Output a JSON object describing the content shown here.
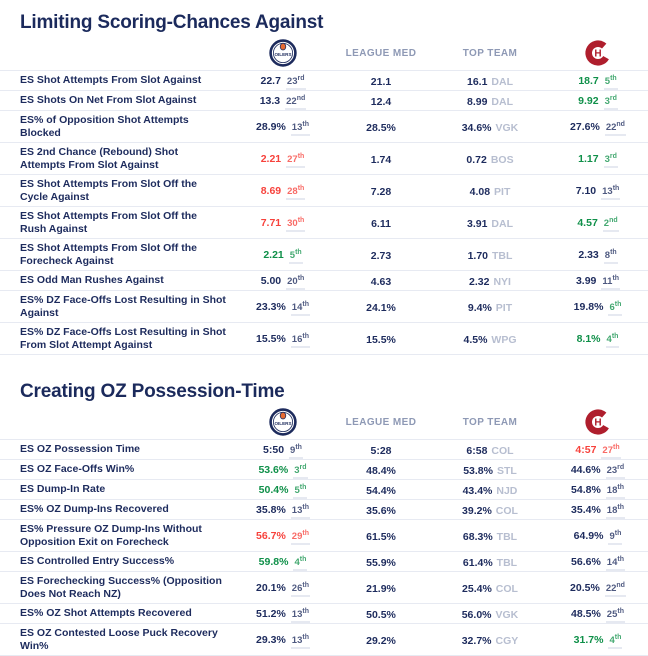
{
  "header_labels": {
    "league_med": "LEAGUE MED",
    "top_team": "TOP TEAM"
  },
  "colors": {
    "navy": "#1d2b5d",
    "green": "#0f9049",
    "red": "#f7423c",
    "header_muted": "#8e99b5",
    "team_abbr_gray": "#b7bed0",
    "row_border": "#e7eaf2",
    "oilers_orange": "#e66a32",
    "canadiens_red": "#af1e2d"
  },
  "chart_data": [
    {
      "type": "table",
      "title": "Limiting Scoring-Chances Against",
      "left_logo": "edmonton-oilers-logo",
      "right_logo": "montreal-canadiens-logo",
      "columns": [
        "Metric",
        "EDM value + league rank",
        "LEAGUE MED",
        "TOP TEAM",
        "MTL value + league rank"
      ],
      "rows": [
        {
          "label": "ES Shot Attempts From Slot Against",
          "team_left": {
            "value": "22.7",
            "rank": "23",
            "ord": "rd",
            "color": "navy"
          },
          "league_med": "21.1",
          "top_team": {
            "value": "16.1",
            "team": "DAL"
          },
          "team_right": {
            "value": "18.7",
            "rank": "5",
            "ord": "th",
            "color": "green"
          }
        },
        {
          "label": "ES Shots On Net From Slot Against",
          "team_left": {
            "value": "13.3",
            "rank": "22",
            "ord": "nd",
            "color": "navy"
          },
          "league_med": "12.4",
          "top_team": {
            "value": "8.99",
            "team": "DAL"
          },
          "team_right": {
            "value": "9.92",
            "rank": "3",
            "ord": "rd",
            "color": "green"
          }
        },
        {
          "label": "ES% of Opposition Shot Attempts Blocked",
          "team_left": {
            "value": "28.9%",
            "rank": "13",
            "ord": "th",
            "color": "navy"
          },
          "league_med": "28.5%",
          "top_team": {
            "value": "34.6%",
            "team": "VGK"
          },
          "team_right": {
            "value": "27.6%",
            "rank": "22",
            "ord": "nd",
            "color": "navy"
          }
        },
        {
          "label": "ES 2nd Chance (Rebound) Shot Attempts From Slot Against",
          "team_left": {
            "value": "2.21",
            "rank": "27",
            "ord": "th",
            "color": "red"
          },
          "league_med": "1.74",
          "top_team": {
            "value": "0.72",
            "team": "BOS"
          },
          "team_right": {
            "value": "1.17",
            "rank": "3",
            "ord": "rd",
            "color": "green"
          }
        },
        {
          "label": "ES Shot Attempts From Slot Off the Cycle Against",
          "team_left": {
            "value": "8.69",
            "rank": "28",
            "ord": "th",
            "color": "red"
          },
          "league_med": "7.28",
          "top_team": {
            "value": "4.08",
            "team": "PIT"
          },
          "team_right": {
            "value": "7.10",
            "rank": "13",
            "ord": "th",
            "color": "navy"
          }
        },
        {
          "label": "ES Shot Attempts From Slot Off the Rush Against",
          "team_left": {
            "value": "7.71",
            "rank": "30",
            "ord": "th",
            "color": "red"
          },
          "league_med": "6.11",
          "top_team": {
            "value": "3.91",
            "team": "DAL"
          },
          "team_right": {
            "value": "4.57",
            "rank": "2",
            "ord": "nd",
            "color": "green"
          }
        },
        {
          "label": "ES Shot Attempts From Slot Off the Forecheck Against",
          "team_left": {
            "value": "2.21",
            "rank": "5",
            "ord": "th",
            "color": "green"
          },
          "league_med": "2.73",
          "top_team": {
            "value": "1.70",
            "team": "TBL"
          },
          "team_right": {
            "value": "2.33",
            "rank": "8",
            "ord": "th",
            "color": "navy"
          }
        },
        {
          "label": "ES Odd Man Rushes Against",
          "team_left": {
            "value": "5.00",
            "rank": "20",
            "ord": "th",
            "color": "navy"
          },
          "league_med": "4.63",
          "top_team": {
            "value": "2.32",
            "team": "NYI"
          },
          "team_right": {
            "value": "3.99",
            "rank": "11",
            "ord": "th",
            "color": "navy"
          }
        },
        {
          "label": "ES% DZ Face-Offs Lost Resulting in Shot Against",
          "team_left": {
            "value": "23.3%",
            "rank": "14",
            "ord": "th",
            "color": "navy"
          },
          "league_med": "24.1%",
          "top_team": {
            "value": "9.4%",
            "team": "PIT"
          },
          "team_right": {
            "value": "19.8%",
            "rank": "6",
            "ord": "th",
            "color": "navy",
            "rank_color": "green"
          }
        },
        {
          "label": "ES% DZ Face-Offs Lost Resulting in Shot From Slot Attempt Against",
          "team_left": {
            "value": "15.5%",
            "rank": "16",
            "ord": "th",
            "color": "navy"
          },
          "league_med": "15.5%",
          "top_team": {
            "value": "4.5%",
            "team": "WPG"
          },
          "team_right": {
            "value": "8.1%",
            "rank": "4",
            "ord": "th",
            "color": "green"
          }
        }
      ]
    },
    {
      "type": "table",
      "title": "Creating OZ Possession-Time",
      "left_logo": "edmonton-oilers-logo",
      "right_logo": "montreal-canadiens-logo",
      "columns": [
        "Metric",
        "EDM value + league rank",
        "LEAGUE MED",
        "TOP TEAM",
        "MTL value + league rank"
      ],
      "rows": [
        {
          "label": "ES OZ Possession Time",
          "team_left": {
            "value": "5:50",
            "rank": "9",
            "ord": "th",
            "color": "navy"
          },
          "league_med": "5:28",
          "top_team": {
            "value": "6:58",
            "team": "COL"
          },
          "team_right": {
            "value": "4:57",
            "rank": "27",
            "ord": "th",
            "color": "red"
          }
        },
        {
          "label": "ES OZ Face-Offs Win%",
          "team_left": {
            "value": "53.6%",
            "rank": "3",
            "ord": "rd",
            "color": "green"
          },
          "league_med": "48.4%",
          "top_team": {
            "value": "53.8%",
            "team": "STL"
          },
          "team_right": {
            "value": "44.6%",
            "rank": "23",
            "ord": "rd",
            "color": "navy"
          }
        },
        {
          "label": "ES Dump-In Rate",
          "team_left": {
            "value": "50.4%",
            "rank": "5",
            "ord": "th",
            "color": "green"
          },
          "league_med": "54.4%",
          "top_team": {
            "value": "43.4%",
            "team": "NJD"
          },
          "team_right": {
            "value": "54.8%",
            "rank": "18",
            "ord": "th",
            "color": "navy"
          }
        },
        {
          "label": "ES% OZ Dump-Ins Recovered",
          "team_left": {
            "value": "35.8%",
            "rank": "13",
            "ord": "th",
            "color": "navy"
          },
          "league_med": "35.6%",
          "top_team": {
            "value": "39.2%",
            "team": "COL"
          },
          "team_right": {
            "value": "35.4%",
            "rank": "18",
            "ord": "th",
            "color": "navy"
          }
        },
        {
          "label": "ES% Pressure OZ Dump-Ins Without Opposition Exit on Forecheck",
          "team_left": {
            "value": "56.7%",
            "rank": "29",
            "ord": "th",
            "color": "red"
          },
          "league_med": "61.5%",
          "top_team": {
            "value": "68.3%",
            "team": "TBL"
          },
          "team_right": {
            "value": "64.9%",
            "rank": "9",
            "ord": "th",
            "color": "navy"
          }
        },
        {
          "label": "ES Controlled Entry Success%",
          "team_left": {
            "value": "59.8%",
            "rank": "4",
            "ord": "th",
            "color": "green"
          },
          "league_med": "55.9%",
          "top_team": {
            "value": "61.4%",
            "team": "TBL"
          },
          "team_right": {
            "value": "56.6%",
            "rank": "14",
            "ord": "th",
            "color": "navy"
          }
        },
        {
          "label": "ES Forechecking Success% (Opposition Does Not Reach NZ)",
          "team_left": {
            "value": "20.1%",
            "rank": "26",
            "ord": "th",
            "color": "navy"
          },
          "league_med": "21.9%",
          "top_team": {
            "value": "25.4%",
            "team": "COL"
          },
          "team_right": {
            "value": "20.5%",
            "rank": "22",
            "ord": "nd",
            "color": "navy"
          }
        },
        {
          "label": "ES% OZ Shot Attempts Recovered",
          "team_left": {
            "value": "51.2%",
            "rank": "13",
            "ord": "th",
            "color": "navy"
          },
          "league_med": "50.5%",
          "top_team": {
            "value": "56.0%",
            "team": "VGK"
          },
          "team_right": {
            "value": "48.5%",
            "rank": "25",
            "ord": "th",
            "color": "navy"
          }
        },
        {
          "label": "ES OZ Contested Loose Puck Recovery Win%",
          "team_left": {
            "value": "29.3%",
            "rank": "13",
            "ord": "th",
            "color": "navy"
          },
          "league_med": "29.2%",
          "top_team": {
            "value": "32.7%",
            "team": "CGY"
          },
          "team_right": {
            "value": "31.7%",
            "rank": "4",
            "ord": "th",
            "color": "green"
          }
        }
      ]
    }
  ]
}
